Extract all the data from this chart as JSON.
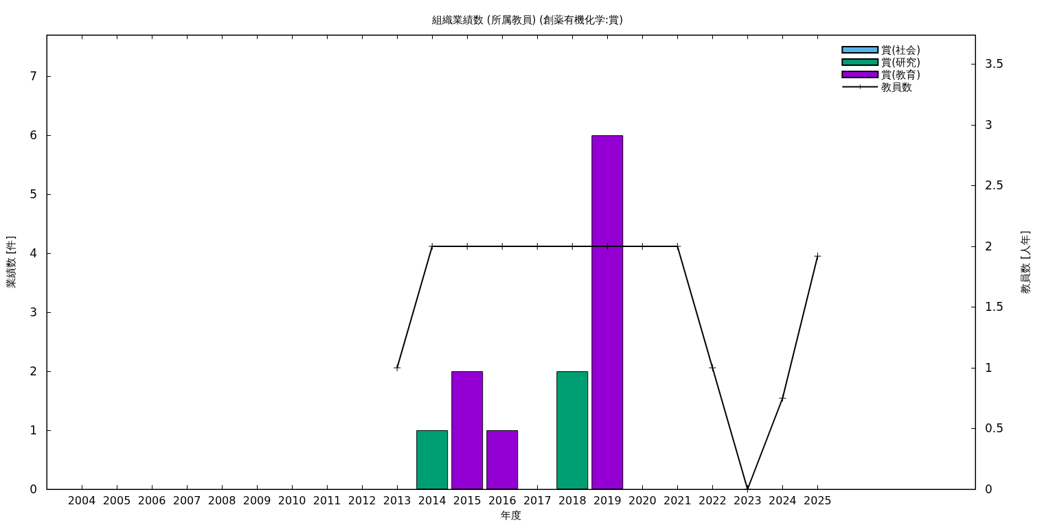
{
  "chart_data": {
    "type": "bar",
    "title": "組織業績数 (所属教員) (創薬有機化学:賞)",
    "xlabel": "年度",
    "ylabel": "業績数 [件]",
    "y2label": "教員数 [人年]",
    "x": [
      2004,
      2005,
      2006,
      2007,
      2008,
      2009,
      2010,
      2011,
      2012,
      2013,
      2014,
      2015,
      2016,
      2017,
      2018,
      2019,
      2020,
      2021,
      2022,
      2023,
      2024,
      2025
    ],
    "stacked": true,
    "series": [
      {
        "name": "賞(社会)",
        "color": "#56b4e9",
        "values": [
          0,
          0,
          0,
          0,
          0,
          0,
          0,
          0,
          0,
          0,
          0,
          0,
          0,
          0,
          0,
          0,
          0,
          0,
          0,
          0,
          0,
          0
        ]
      },
      {
        "name": "賞(研究)",
        "color": "#009e73",
        "values": [
          0,
          0,
          0,
          0,
          0,
          0,
          0,
          0,
          0,
          0,
          1,
          0,
          0,
          0,
          2,
          0,
          0,
          0,
          0,
          0,
          0,
          0
        ]
      },
      {
        "name": "賞(教育)",
        "color": "#9400d3",
        "values": [
          0,
          0,
          0,
          0,
          0,
          0,
          0,
          0,
          0,
          0,
          0,
          2,
          1,
          0,
          0,
          6,
          0,
          0,
          0,
          0,
          0,
          0
        ]
      },
      {
        "name": "教員数",
        "type": "line",
        "axis": "y2",
        "color": "#000000",
        "marker": "cross",
        "x": [
          2013,
          2014,
          2015,
          2016,
          2017,
          2018,
          2019,
          2020,
          2021,
          2022,
          2023,
          2024,
          2025
        ],
        "values": [
          1,
          2,
          2,
          2,
          2,
          2,
          2,
          2,
          2,
          1,
          0,
          0.75,
          1.92
        ]
      }
    ],
    "xlim": [
      2003,
      2029.5
    ],
    "xticks": [
      2004,
      2005,
      2006,
      2007,
      2008,
      2009,
      2010,
      2011,
      2012,
      2013,
      2014,
      2015,
      2016,
      2017,
      2018,
      2019,
      2020,
      2021,
      2022,
      2023,
      2024,
      2025
    ],
    "ylim": [
      0,
      7.7
    ],
    "yticks": [
      0,
      1,
      2,
      3,
      4,
      5,
      6,
      7
    ],
    "y2lim": [
      0,
      3.74
    ],
    "y2ticks": [
      0,
      0.5,
      1,
      1.5,
      2,
      2.5,
      3,
      3.5
    ],
    "grid": false,
    "legend": "top right"
  }
}
